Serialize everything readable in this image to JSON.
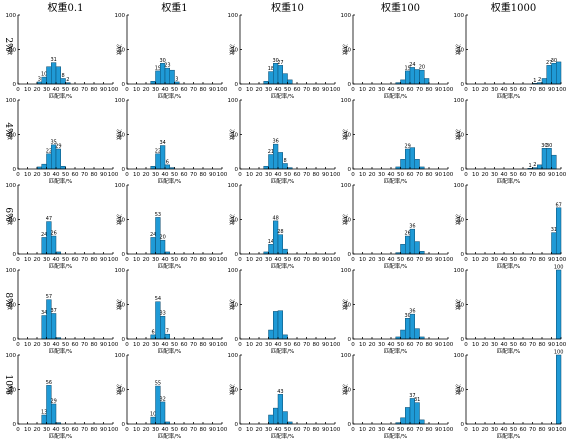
{
  "column_titles": [
    "权重0.1",
    "权重1",
    "权重10",
    "权重100",
    "权重1000"
  ],
  "row_labels": [
    "2%",
    "4%",
    "6%",
    "8%",
    "10%"
  ],
  "chart_data": {
    "type": "bar",
    "layout": "grid of histograms (5 rows × 5 columns)",
    "xlabel": "匹配率/%",
    "ylabel": "次数",
    "x_ticks": [
      0,
      10,
      20,
      30,
      40,
      50,
      60,
      70,
      80,
      90,
      100
    ],
    "xlim": [
      0,
      100
    ],
    "bin_width": 5,
    "panels": [
      {
        "row": "2%",
        "column": "权重0.1",
        "ylim": [
          0,
          100
        ],
        "y_ticks": [
          0,
          50,
          100
        ],
        "bins": [
          20,
          25,
          30,
          35,
          40,
          45,
          50
        ],
        "values": [
          3,
          10,
          25,
          31,
          25,
          8,
          2
        ],
        "labels": [
          "3",
          "10",
          "",
          "31",
          "",
          "8",
          "2"
        ]
      },
      {
        "row": "2%",
        "column": "权重1",
        "ylim": [
          0,
          100
        ],
        "y_ticks": [
          0,
          50,
          100
        ],
        "bins": [
          25,
          30,
          35,
          40,
          45,
          50
        ],
        "values": [
          4,
          19,
          30,
          23,
          20,
          3
        ],
        "labels": [
          "",
          "19",
          "30",
          "23",
          "",
          "3"
        ]
      },
      {
        "row": "2%",
        "column": "权重10",
        "ylim": [
          0,
          100
        ],
        "y_ticks": [
          0,
          50,
          100
        ],
        "bins": [
          25,
          30,
          35,
          40,
          45,
          50
        ],
        "values": [
          4,
          18,
          30,
          27,
          15,
          6
        ],
        "labels": [
          "",
          "18",
          "30",
          "27",
          "",
          ""
        ]
      },
      {
        "row": "2%",
        "column": "权重100",
        "ylim": [
          0,
          100
        ],
        "y_ticks": [
          0,
          50,
          100
        ],
        "bins": [
          45,
          50,
          55,
          60,
          65,
          70,
          75
        ],
        "values": [
          2,
          6,
          19,
          24,
          21,
          20,
          8
        ],
        "labels": [
          "",
          "",
          "19",
          "24",
          "",
          "20",
          ""
        ]
      },
      {
        "row": "2%",
        "column": "权重1000",
        "ylim": [
          0,
          100
        ],
        "y_ticks": [
          0,
          50,
          100
        ],
        "bins": [
          70,
          75,
          80,
          85,
          90,
          95
        ],
        "values": [
          1,
          2,
          8,
          27,
          30,
          32
        ],
        "labels": [
          "1",
          "2",
          "",
          "27",
          "30",
          ""
        ]
      },
      {
        "row": "4%",
        "column": "权重0.1",
        "ylim": [
          0,
          100
        ],
        "y_ticks": [
          0,
          50,
          100
        ],
        "bins": [
          20,
          25,
          30,
          35,
          40,
          45
        ],
        "values": [
          3,
          7,
          22,
          35,
          29,
          4
        ],
        "labels": [
          "",
          "",
          "22",
          "35",
          "29",
          ""
        ]
      },
      {
        "row": "4%",
        "column": "权重1",
        "ylim": [
          0,
          100
        ],
        "y_ticks": [
          0,
          50,
          100
        ],
        "bins": [
          25,
          30,
          35,
          40,
          45
        ],
        "values": [
          4,
          22,
          34,
          6,
          2
        ],
        "labels": [
          "",
          "22",
          "34",
          "6",
          ""
        ]
      },
      {
        "row": "4%",
        "column": "权重10",
        "ylim": [
          0,
          100
        ],
        "y_ticks": [
          0,
          50,
          100
        ],
        "bins": [
          25,
          30,
          35,
          40,
          45,
          50
        ],
        "values": [
          4,
          21,
          36,
          24,
          8,
          2
        ],
        "labels": [
          "",
          "21",
          "36",
          "",
          "8",
          ""
        ]
      },
      {
        "row": "4%",
        "column": "权重100",
        "ylim": [
          0,
          100
        ],
        "y_ticks": [
          0,
          50,
          100
        ],
        "bins": [
          45,
          50,
          55,
          60,
          65,
          70
        ],
        "values": [
          3,
          14,
          29,
          31,
          14,
          3
        ],
        "labels": [
          "",
          "",
          "29",
          "",
          "",
          ""
        ]
      },
      {
        "row": "4%",
        "column": "权重1000",
        "ylim": [
          0,
          100
        ],
        "y_ticks": [
          0,
          50,
          100
        ],
        "bins": [
          65,
          70,
          75,
          80,
          85,
          90
        ],
        "values": [
          1,
          2,
          6,
          30,
          30,
          20
        ],
        "labels": [
          "1",
          "2",
          "",
          "30",
          "30",
          ""
        ]
      },
      {
        "row": "6%",
        "column": "权重0.1",
        "ylim": [
          0,
          100
        ],
        "y_ticks": [
          0,
          50,
          100
        ],
        "bins": [
          25,
          30,
          35,
          40
        ],
        "values": [
          24,
          47,
          26,
          3
        ],
        "labels": [
          "24",
          "47",
          "26",
          ""
        ]
      },
      {
        "row": "6%",
        "column": "权重1",
        "ylim": [
          0,
          100
        ],
        "y_ticks": [
          0,
          50,
          100
        ],
        "bins": [
          25,
          30,
          35,
          40
        ],
        "values": [
          24,
          53,
          20,
          3
        ],
        "labels": [
          "24",
          "53",
          "20",
          ""
        ]
      },
      {
        "row": "6%",
        "column": "权重10",
        "ylim": [
          0,
          100
        ],
        "y_ticks": [
          0,
          50,
          100
        ],
        "bins": [
          25,
          30,
          35,
          40,
          45
        ],
        "values": [
          3,
          14,
          48,
          28,
          7
        ],
        "labels": [
          "",
          "14",
          "48",
          "28",
          ""
        ]
      },
      {
        "row": "6%",
        "column": "权重100",
        "ylim": [
          0,
          100
        ],
        "y_ticks": [
          0,
          50,
          100
        ],
        "bins": [
          45,
          50,
          55,
          60,
          65,
          70
        ],
        "values": [
          2,
          14,
          26,
          36,
          18,
          4
        ],
        "labels": [
          "",
          "",
          "26",
          "36",
          "",
          ""
        ]
      },
      {
        "row": "6%",
        "column": "权重1000",
        "ylim": [
          0,
          100
        ],
        "y_ticks": [
          0,
          50,
          100
        ],
        "bins": [
          90,
          95
        ],
        "values": [
          31,
          67
        ],
        "labels": [
          "31",
          "67"
        ]
      },
      {
        "row": "8%",
        "column": "权重0.1",
        "ylim": [
          0,
          100
        ],
        "y_ticks": [
          0,
          50,
          100
        ],
        "bins": [
          25,
          30,
          35,
          40
        ],
        "values": [
          34,
          57,
          37,
          2
        ],
        "labels": [
          "34",
          "57",
          "37",
          ""
        ]
      },
      {
        "row": "8%",
        "column": "权重1",
        "ylim": [
          0,
          100
        ],
        "y_ticks": [
          0,
          50,
          100
        ],
        "bins": [
          25,
          30,
          35,
          40
        ],
        "values": [
          6,
          54,
          33,
          7
        ],
        "labels": [
          "6",
          "54",
          "33",
          "7"
        ]
      },
      {
        "row": "8%",
        "column": "权重10",
        "ylim": [
          0,
          100
        ],
        "y_ticks": [
          0,
          50,
          100
        ],
        "bins": [
          30,
          35,
          40,
          45
        ],
        "values": [
          13,
          40,
          41,
          6
        ],
        "labels": [
          "",
          "",
          "",
          ""
        ]
      },
      {
        "row": "8%",
        "column": "权重100",
        "ylim": [
          0,
          100
        ],
        "y_ticks": [
          0,
          50,
          100
        ],
        "bins": [
          45,
          50,
          55,
          60,
          65,
          70
        ],
        "values": [
          3,
          13,
          30,
          36,
          15,
          3
        ],
        "labels": [
          "",
          "",
          "30",
          "36",
          "",
          ""
        ]
      },
      {
        "row": "8%",
        "column": "权重1000",
        "ylim": [
          0,
          100
        ],
        "y_ticks": [
          0,
          50,
          100
        ],
        "bins": [
          95
        ],
        "values": [
          100
        ],
        "labels": [
          "100"
        ]
      },
      {
        "row": "10%",
        "column": "权重0.1",
        "ylim": [
          0,
          100
        ],
        "y_ticks": [
          0,
          50,
          100
        ],
        "bins": [
          25,
          30,
          35,
          40
        ],
        "values": [
          13,
          56,
          29,
          2
        ],
        "labels": [
          "13",
          "56",
          "29",
          ""
        ]
      },
      {
        "row": "10%",
        "column": "权重1",
        "ylim": [
          0,
          100
        ],
        "y_ticks": [
          0,
          50,
          100
        ],
        "bins": [
          25,
          30,
          35,
          40
        ],
        "values": [
          10,
          55,
          32,
          3
        ],
        "labels": [
          "10",
          "55",
          "32",
          ""
        ]
      },
      {
        "row": "10%",
        "column": "权重10",
        "ylim": [
          0,
          100
        ],
        "y_ticks": [
          0,
          50,
          100
        ],
        "bins": [
          30,
          35,
          40,
          45,
          50
        ],
        "values": [
          13,
          23,
          43,
          18,
          3
        ],
        "labels": [
          "",
          "",
          "43",
          "",
          ""
        ]
      },
      {
        "row": "10%",
        "column": "权重100",
        "ylim": [
          0,
          100
        ],
        "y_ticks": [
          0,
          50,
          100
        ],
        "bins": [
          45,
          50,
          55,
          60,
          65,
          70
        ],
        "values": [
          2,
          9,
          24,
          37,
          31,
          6
        ],
        "labels": [
          "",
          "",
          "",
          "37",
          "31",
          ""
        ]
      },
      {
        "row": "10%",
        "column": "权重1000",
        "ylim": [
          0,
          100
        ],
        "y_ticks": [
          0,
          50,
          100
        ],
        "bins": [
          95
        ],
        "values": [
          100
        ],
        "labels": [
          "100"
        ]
      }
    ]
  },
  "colors": {
    "bar_fill": "#1f9ad6",
    "bar_edge": "#0b4a6e",
    "axis": "#000000"
  }
}
